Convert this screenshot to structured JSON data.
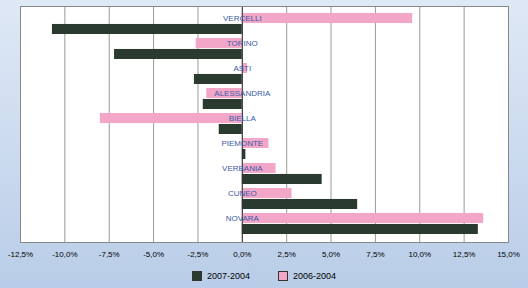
{
  "chart_data": {
    "type": "bar",
    "orientation": "horizontal",
    "categories": [
      "VERCELLI",
      "TORINO",
      "ASTI",
      "ALESSANDRIA",
      "BIELLA",
      "PIEMONTE",
      "VERBANIA",
      "CUNEO",
      "NOVARA"
    ],
    "series": [
      {
        "name": "2007-2004",
        "color": "#2b3a2e",
        "values": [
          -10.7,
          -7.2,
          -2.7,
          -2.2,
          -1.3,
          0.2,
          4.5,
          6.5,
          13.3
        ]
      },
      {
        "name": "2006-2004",
        "color": "#f2a7c8",
        "values": [
          9.6,
          -2.6,
          0.3,
          -2.0,
          -8.0,
          1.5,
          1.9,
          2.8,
          13.6
        ]
      }
    ],
    "xlim": [
      -12.5,
      15
    ],
    "xticks": [
      {
        "value": -12.5,
        "label": "-12,5%"
      },
      {
        "value": -10,
        "label": "-10,0%"
      },
      {
        "value": -7.5,
        "label": "-7,5%"
      },
      {
        "value": -5,
        "label": "-5,0%"
      },
      {
        "value": -2.5,
        "label": "-2,5%"
      },
      {
        "value": 0,
        "label": "0,0%"
      },
      {
        "value": 2.5,
        "label": "2,5%"
      },
      {
        "value": 5,
        "label": "5,0%"
      },
      {
        "value": 7.5,
        "label": "7,5%"
      },
      {
        "value": 10,
        "label": "10,0%"
      },
      {
        "value": 12.5,
        "label": "12,5%"
      },
      {
        "value": 15,
        "label": "15,0%"
      }
    ],
    "grid": true,
    "legend": "bottom"
  }
}
